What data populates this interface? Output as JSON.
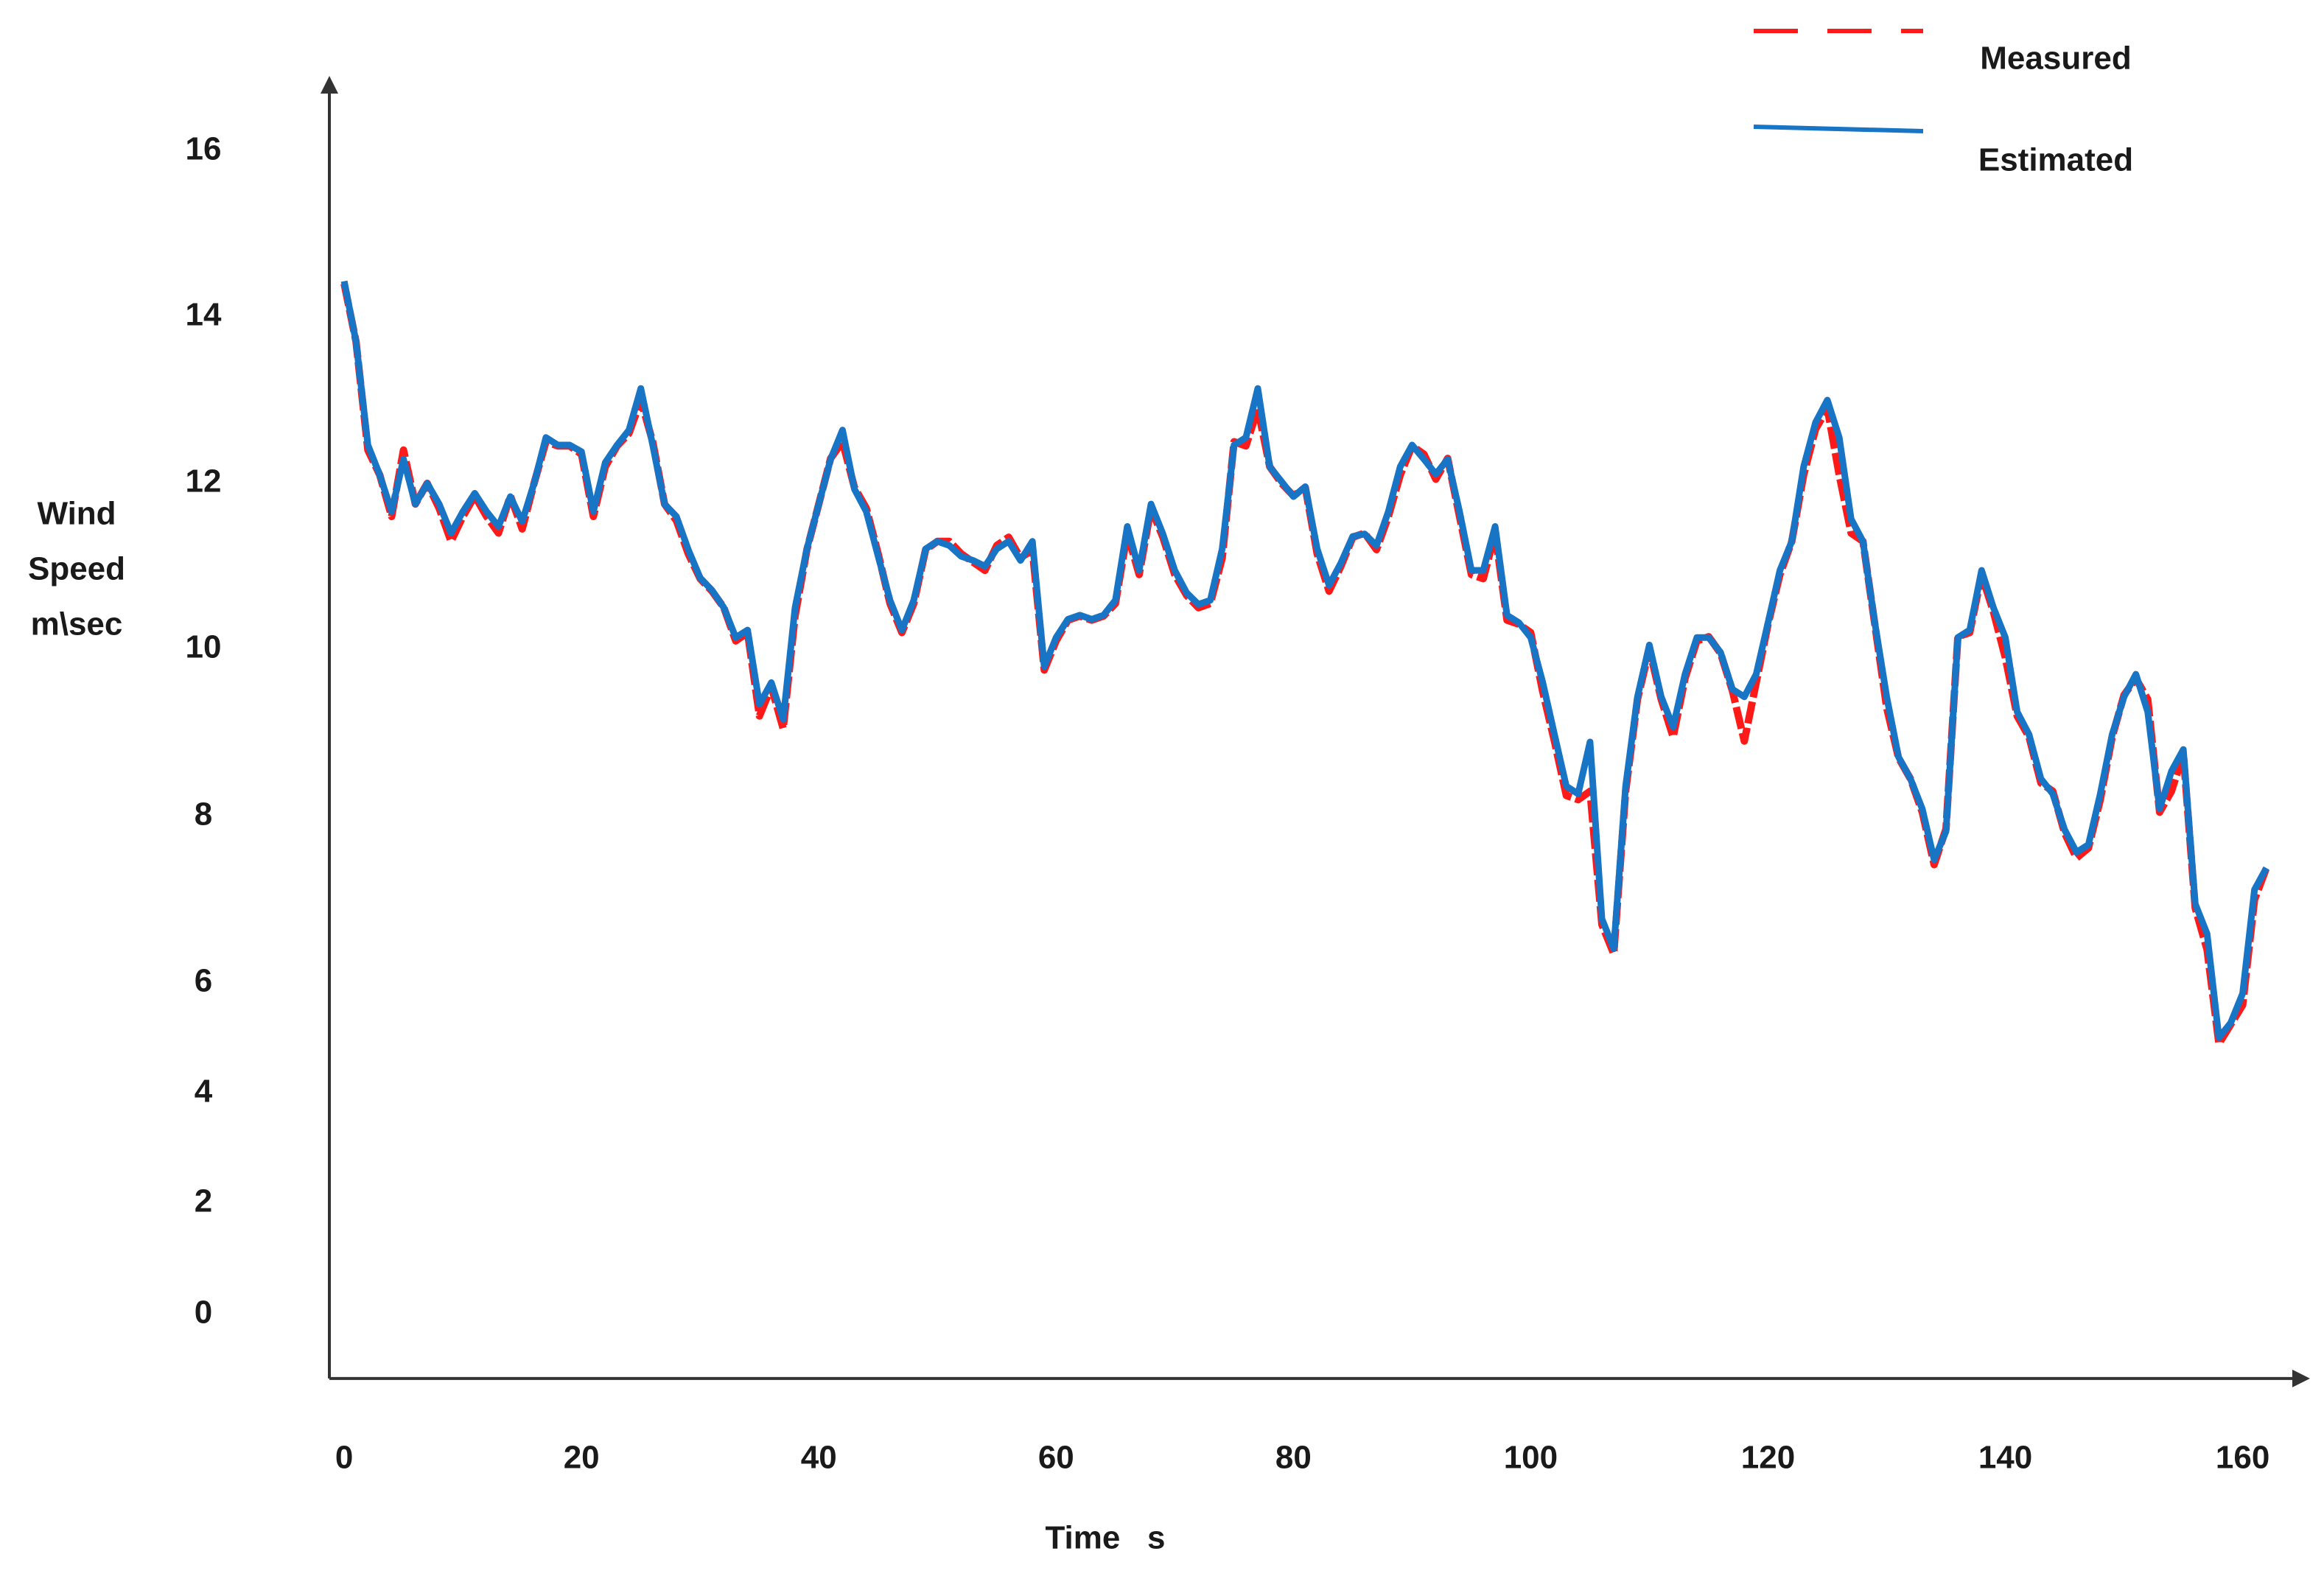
{
  "chart_data": {
    "type": "line",
    "ylabel": [
      "Wind",
      "Speed",
      "m\\sec"
    ],
    "xlabel": "Time   s",
    "x": [
      0,
      1,
      2,
      3,
      4,
      5,
      6,
      7,
      8,
      9,
      10,
      11,
      12,
      13,
      14,
      15,
      16,
      17,
      18,
      19,
      20,
      21,
      22,
      23,
      24,
      25,
      26,
      27,
      28,
      29,
      30,
      31,
      32,
      33,
      34,
      35,
      36,
      37,
      38,
      39,
      40,
      41,
      42,
      43,
      44,
      45,
      46,
      47,
      48,
      49,
      50,
      51,
      52,
      53,
      54,
      55,
      56,
      57,
      58,
      59,
      60,
      61,
      62,
      63,
      64,
      65,
      66,
      67,
      68,
      69,
      70,
      71,
      72,
      73,
      74,
      75,
      76,
      77,
      78,
      79,
      80,
      81,
      82,
      83,
      84,
      85,
      86,
      87,
      88,
      89,
      90,
      91,
      92,
      93,
      94,
      95,
      96,
      97,
      98,
      99,
      100,
      101,
      102,
      103,
      104,
      105,
      106,
      107,
      108,
      109,
      110,
      111,
      112,
      113,
      114,
      115,
      116,
      117,
      118,
      119,
      120,
      121,
      122,
      123,
      124,
      125,
      126,
      127,
      128,
      129,
      130,
      131,
      132,
      133,
      134,
      135,
      136,
      137,
      138,
      139,
      140,
      141,
      142,
      143,
      144,
      145,
      146,
      147,
      148,
      149,
      150,
      151,
      152,
      153,
      154,
      155,
      156,
      157,
      158,
      159,
      160,
      161,
      162
    ],
    "series": [
      {
        "name": "Measured",
        "color": "#ff1a1a",
        "line_style": "dashed",
        "values": [
          14.4,
          13.7,
          12.4,
          12.1,
          11.6,
          12.4,
          11.75,
          12.0,
          11.7,
          11.3,
          11.6,
          11.85,
          11.6,
          11.4,
          11.85,
          11.45,
          12.0,
          12.5,
          12.45,
          12.45,
          12.35,
          11.6,
          12.2,
          12.45,
          12.6,
          13.0,
          12.5,
          11.75,
          11.55,
          11.15,
          10.85,
          10.7,
          10.5,
          10.1,
          10.2,
          9.2,
          9.55,
          9.05,
          10.4,
          11.2,
          11.75,
          12.3,
          12.5,
          11.95,
          11.7,
          11.15,
          10.55,
          10.2,
          10.55,
          11.2,
          11.3,
          11.3,
          11.15,
          11.05,
          10.95,
          11.25,
          11.35,
          11.1,
          11.2,
          9.75,
          10.1,
          10.35,
          10.4,
          10.35,
          10.4,
          10.55,
          11.4,
          10.9,
          11.7,
          11.35,
          10.9,
          10.65,
          10.5,
          10.55,
          11.1,
          12.5,
          12.45,
          12.9,
          12.2,
          12.0,
          11.85,
          11.95,
          11.15,
          10.7,
          11.0,
          11.35,
          11.4,
          11.2,
          11.6,
          12.1,
          12.45,
          12.35,
          12.05,
          12.3,
          11.6,
          10.9,
          10.85,
          11.4,
          10.35,
          10.3,
          10.2,
          9.5,
          8.9,
          8.25,
          8.2,
          8.3,
          6.7,
          6.35,
          8.3,
          9.4,
          10.0,
          9.4,
          8.95,
          9.65,
          10.1,
          10.15,
          9.95,
          9.5,
          8.9,
          9.6,
          10.3,
          10.9,
          11.3,
          12.1,
          12.65,
          12.9,
          12.1,
          11.4,
          11.3,
          10.3,
          9.3,
          8.7,
          8.45,
          8.05,
          7.42,
          7.85,
          10.15,
          10.2,
          10.9,
          10.45,
          9.9,
          9.2,
          8.95,
          8.4,
          8.3,
          7.8,
          7.5,
          7.62,
          8.2,
          8.95,
          9.45,
          9.65,
          9.4,
          8.05,
          8.3,
          8.75,
          6.9,
          6.4,
          4.9,
          5.25,
          5.6,
          7.0,
          7.38
        ]
      },
      {
        "name": "Estimated",
        "color": "#1874c4",
        "line_style": "solid",
        "values": [
          14.43,
          13.7,
          12.46,
          12.1,
          11.66,
          12.29,
          11.75,
          12.0,
          11.75,
          11.4,
          11.66,
          11.88,
          11.66,
          11.48,
          11.84,
          11.54,
          12.0,
          12.55,
          12.46,
          12.46,
          12.38,
          11.66,
          12.25,
          12.46,
          12.64,
          13.14,
          12.46,
          11.75,
          11.6,
          11.2,
          10.86,
          10.71,
          10.5,
          10.14,
          10.23,
          9.34,
          9.6,
          9.16,
          10.5,
          11.21,
          11.75,
          12.29,
          12.64,
          11.93,
          11.66,
          11.12,
          10.59,
          10.23,
          10.59,
          11.21,
          11.3,
          11.25,
          11.12,
          11.07,
          11.0,
          11.21,
          11.3,
          11.07,
          11.3,
          9.79,
          10.14,
          10.36,
          10.41,
          10.36,
          10.41,
          10.59,
          11.48,
          10.95,
          11.75,
          11.39,
          10.95,
          10.68,
          10.54,
          10.59,
          11.21,
          12.46,
          12.55,
          13.14,
          12.2,
          12.02,
          11.84,
          11.96,
          11.21,
          10.77,
          11.04,
          11.36,
          11.39,
          11.25,
          11.66,
          12.2,
          12.46,
          12.29,
          12.11,
          12.29,
          11.66,
          10.95,
          10.95,
          11.48,
          10.41,
          10.32,
          10.14,
          9.61,
          8.98,
          8.36,
          8.27,
          8.89,
          6.77,
          6.41,
          8.36,
          9.43,
          10.05,
          9.43,
          9.07,
          9.7,
          10.14,
          10.14,
          9.96,
          9.52,
          9.43,
          9.7,
          10.32,
          10.95,
          11.3,
          12.2,
          12.73,
          13.0,
          12.55,
          11.57,
          11.3,
          10.32,
          9.43,
          8.71,
          8.45,
          8.09,
          7.48,
          7.82,
          10.14,
          10.23,
          10.95,
          10.5,
          10.14,
          9.25,
          8.98,
          8.45,
          8.27,
          7.84,
          7.57,
          7.66,
          8.27,
          8.98,
          9.43,
          9.7,
          9.25,
          8.09,
          8.54,
          8.8,
          6.95,
          6.59,
          5.01,
          5.28,
          5.81,
          7.12,
          7.38
        ]
      }
    ],
    "xlim": [
      -1.25,
      164
    ],
    "xticks": [
      0,
      20,
      40,
      60,
      80,
      100,
      120,
      140,
      160
    ],
    "ylim": [
      -1.15,
      16.8
    ],
    "yticks": [
      0,
      2,
      4,
      6,
      8,
      10,
      12,
      14,
      16
    ],
    "grid": false,
    "legend": "upper right"
  }
}
